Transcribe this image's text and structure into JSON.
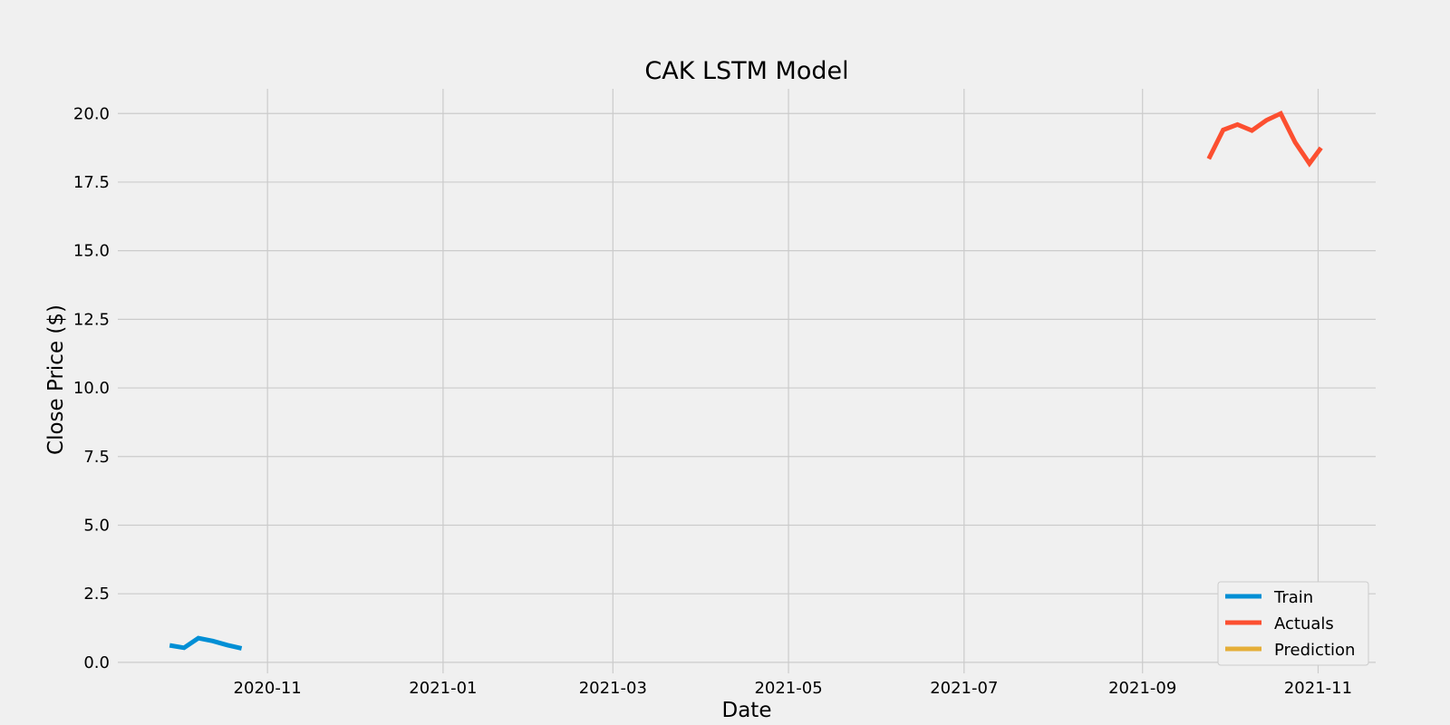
{
  "chart_data": {
    "type": "line",
    "title": "CAK LSTM Model",
    "xlabel": "Date",
    "ylabel": "Close Price ($)",
    "x_type": "date",
    "xlim": [
      "2020-09-10",
      "2021-11-21"
    ],
    "ylim": [
      -0.4,
      20.9
    ],
    "x_ticks": [
      "2020-11-01",
      "2021-01-01",
      "2021-03-01",
      "2021-05-01",
      "2021-07-01",
      "2021-09-01",
      "2021-11-01"
    ],
    "x_tick_labels": [
      "2020-11",
      "2021-01",
      "2021-03",
      "2021-05",
      "2021-07",
      "2021-09",
      "2021-11"
    ],
    "y_ticks": [
      0.0,
      2.5,
      5.0,
      7.5,
      10.0,
      12.5,
      15.0,
      17.5,
      20.0
    ],
    "y_tick_labels": [
      "0.0",
      "2.5",
      "5.0",
      "7.5",
      "10.0",
      "12.5",
      "15.0",
      "17.5",
      "20.0"
    ],
    "grid": true,
    "legend_position": "bottom-right",
    "series": [
      {
        "name": "Train",
        "color": "#008fd5",
        "x": [
          "2020-09-28",
          "2020-10-03",
          "2020-10-08",
          "2020-10-13",
          "2020-10-18",
          "2020-10-23"
        ],
        "y": [
          0.62,
          0.53,
          0.88,
          0.78,
          0.63,
          0.51
        ]
      },
      {
        "name": "Actuals",
        "color": "#fc4f30",
        "x": [
          "2021-09-24",
          "2021-09-29",
          "2021-10-04",
          "2021-10-09",
          "2021-10-14",
          "2021-10-19",
          "2021-10-24",
          "2021-10-29",
          "2021-11-02"
        ],
        "y": [
          18.35,
          19.4,
          19.6,
          19.38,
          19.75,
          20.0,
          18.95,
          18.18,
          18.75
        ]
      },
      {
        "name": "Prediction",
        "color": "#e5ae38",
        "x": [],
        "y": []
      }
    ]
  }
}
